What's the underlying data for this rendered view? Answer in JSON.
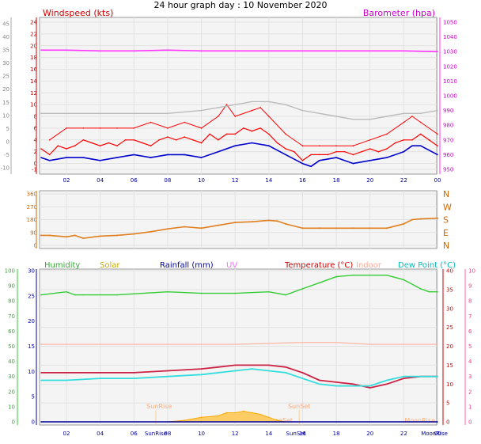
{
  "title": "24 hour graph day : 10 November 2020",
  "colors": {
    "windspeed": "#ff0000",
    "gust": "#ff0000",
    "avg_wind": "#0000cc",
    "barometer": "#ff33ff",
    "wind_dir": "#e08020",
    "humidity": "#33cc33",
    "solar": "#ffaa00",
    "rainfall": "#000099",
    "uv": "#ff66ff",
    "temperature": "#cc2244",
    "indoor": "#ffbbaa",
    "dew_point": "#33dddd"
  },
  "x_ticks": [
    "02",
    "04",
    "06",
    "08",
    "10",
    "12",
    "14",
    "16",
    "18",
    "20",
    "22",
    "00"
  ],
  "panel1": {
    "left_label": "Windspeed (kts)",
    "right_label": "Barometer (hpa)",
    "left_ticks": [
      "-1",
      "0",
      "2",
      "4",
      "6",
      "8",
      "10",
      "12",
      "14",
      "16",
      "18",
      "20",
      "22",
      "24"
    ],
    "left_outer_ticks": [
      "-10",
      "-5",
      "0",
      "5",
      "10",
      "15",
      "20",
      "25",
      "30",
      "35",
      "40",
      "45"
    ],
    "right_ticks": [
      "950",
      "960",
      "970",
      "980",
      "990",
      "1000",
      "1010",
      "1020",
      "1030",
      "1040",
      "1050"
    ]
  },
  "panel2": {
    "left_ticks": [
      "0",
      "90",
      "180",
      "270",
      "360"
    ],
    "right_labels": [
      "N",
      "E",
      "S",
      "W",
      "N"
    ]
  },
  "panel3": {
    "labels": {
      "humidity": "Humidity",
      "solar": "Solar",
      "rainfall": "Rainfall (mm)",
      "uv": "UV",
      "temperature": "Temperature (°C)",
      "indoor": "Indoor",
      "dew_point": "Dew Point (°C)"
    },
    "left_outer_ticks": [
      "0",
      "10",
      "20",
      "30",
      "40",
      "50",
      "60",
      "70",
      "80",
      "90",
      "100"
    ],
    "left_inner_ticks": [
      "0",
      "5",
      "10",
      "15",
      "20",
      "25",
      "30"
    ],
    "right_inner_ticks": [
      "0",
      "5",
      "10",
      "15",
      "20",
      "25",
      "30",
      "35",
      "40"
    ],
    "right_outer_ticks": [
      "0",
      "1",
      "2",
      "3",
      "4",
      "5",
      "6",
      "7",
      "8",
      "9",
      "10"
    ],
    "annotations": {
      "sunrise": "SunRise",
      "sunset": "SunSet",
      "moonrise": "MoonRise",
      "moonset": "MoonSet"
    },
    "bottom_labels": {
      "sunrise": "SunRise",
      "sunset": "SunSet",
      "moonrise": "MoonRise"
    }
  },
  "chart_data": [
    {
      "type": "line",
      "x_unit": "hour",
      "x_range": [
        0.5,
        24
      ],
      "ylabel": "Windspeed (kts)",
      "ylim": [
        -1,
        25
      ],
      "y2label": "Barometer (hpa)",
      "y2lim": [
        950,
        1050
      ],
      "series": [
        {
          "name": "Windspeed (kts)",
          "axis": "left",
          "x": [
            0.5,
            1,
            1.5,
            2,
            2.5,
            3,
            3.5,
            4,
            4.5,
            5,
            5.5,
            6,
            6.5,
            7,
            7.5,
            8,
            8.5,
            9,
            9.5,
            10,
            10.5,
            11,
            11.5,
            12,
            12.5,
            13,
            13.5,
            14,
            14.5,
            15,
            15.5,
            16,
            16.5,
            17,
            17.5,
            18,
            18.5,
            19,
            19.5,
            20,
            20.5,
            21,
            21.5,
            22,
            22.5,
            23,
            23.5,
            24
          ],
          "y": [
            2.5,
            1.5,
            3,
            2.5,
            3,
            4,
            3.5,
            3,
            3.5,
            3,
            4,
            4,
            3.5,
            3,
            4,
            4.5,
            4,
            4.5,
            4,
            3.5,
            5,
            4,
            5,
            5,
            6,
            5.5,
            6,
            5,
            3.5,
            2.5,
            2,
            0.5,
            1.5,
            1.5,
            1.5,
            2,
            2,
            1.5,
            2,
            2.5,
            2,
            2.5,
            3.5,
            4,
            4,
            5,
            4,
            3
          ]
        },
        {
          "name": "Gust",
          "axis": "left",
          "x": [
            1,
            2,
            3,
            4,
            5,
            6,
            7,
            8,
            9,
            10,
            11,
            11.5,
            12,
            13,
            13.5,
            14,
            15,
            16,
            17,
            18,
            19,
            20,
            21,
            22,
            22.5,
            23,
            24
          ],
          "y": [
            4,
            6,
            6,
            6,
            6,
            6,
            7,
            6,
            7,
            6,
            8,
            10,
            8,
            9,
            9.5,
            8,
            5,
            3,
            3,
            3,
            3,
            4,
            5,
            7,
            8,
            7,
            5
          ]
        },
        {
          "name": "Average wind",
          "axis": "left",
          "x": [
            0.5,
            1,
            2,
            3,
            4,
            5,
            6,
            7,
            8,
            9,
            10,
            11,
            12,
            13,
            14,
            15,
            16,
            16.5,
            17,
            18,
            19,
            20,
            21,
            22,
            22.5,
            23,
            24
          ],
          "y": [
            1,
            0.5,
            1,
            1,
            0.5,
            1,
            1.5,
            1,
            1.5,
            1.5,
            1,
            2,
            3,
            3.5,
            3,
            1.5,
            0,
            -0.5,
            0.5,
            1,
            0,
            0.5,
            1,
            2,
            3,
            3,
            1.5
          ]
        },
        {
          "name": "Barometer (hpa)",
          "axis": "right",
          "x": [
            0.5,
            2,
            4,
            6,
            8,
            10,
            12,
            14,
            16,
            18,
            20,
            22,
            24
          ],
          "y": [
            1031,
            1031,
            1030.5,
            1030.5,
            1031,
            1030.5,
            1030.5,
            1030.5,
            1030.5,
            1030.5,
            1030.5,
            1030.5,
            1030
          ]
        },
        {
          "name": "Barometer trace",
          "axis": "left",
          "x": [
            0.5,
            2,
            4,
            6,
            8,
            10,
            11,
            12,
            13,
            14,
            15,
            16,
            17,
            18,
            19,
            20,
            21,
            22,
            23,
            24
          ],
          "y": [
            8.5,
            8.5,
            8.5,
            8.5,
            8.5,
            9,
            9.5,
            10,
            10.5,
            10.5,
            10,
            9,
            8.5,
            8,
            7.5,
            7.5,
            8,
            8.5,
            8.5,
            9
          ]
        }
      ]
    },
    {
      "type": "scatter",
      "x_unit": "hour",
      "x_range": [
        0.5,
        24
      ],
      "ylim": [
        0,
        360
      ],
      "series": [
        {
          "name": "Wind direction",
          "x": [
            0.5,
            1,
            2,
            2.5,
            3,
            4,
            5,
            6,
            7,
            8,
            9,
            10,
            11,
            12,
            13,
            14,
            14.5,
            15,
            16,
            17,
            18,
            19,
            20,
            21,
            22,
            22.5,
            23,
            24
          ],
          "y": [
            70,
            70,
            60,
            70,
            50,
            65,
            70,
            80,
            95,
            115,
            130,
            120,
            140,
            160,
            165,
            175,
            170,
            150,
            120,
            120,
            120,
            120,
            120,
            120,
            150,
            180,
            185,
            190
          ]
        }
      ]
    },
    {
      "type": "line",
      "x_unit": "hour",
      "x_range": [
        0.5,
        24
      ],
      "ylim": [
        0,
        30
      ],
      "y2lim": [
        0,
        40
      ],
      "series": [
        {
          "name": "Humidity",
          "axis": "humidity_0_100",
          "x": [
            0.5,
            2,
            2.5,
            3,
            5,
            8,
            10,
            12,
            14,
            15,
            16,
            17,
            18,
            19,
            20,
            21,
            22,
            23,
            23.5,
            24
          ],
          "y": [
            84,
            86,
            84,
            84,
            84,
            86,
            85,
            85,
            86,
            84,
            88,
            92,
            96,
            97,
            97,
            97,
            94,
            88,
            86,
            86
          ]
        },
        {
          "name": "Solar",
          "axis": "humidity_0_100",
          "x": [
            8,
            9,
            10,
            11,
            11.5,
            12,
            12.5,
            13,
            13.5,
            14,
            14.5,
            15
          ],
          "y": [
            0,
            1,
            3,
            4,
            6,
            6,
            7,
            6,
            5,
            3,
            1,
            0
          ]
        },
        {
          "name": "Rainfall (mm)",
          "axis": "humidity_0_100",
          "x": [
            0.5,
            24
          ],
          "y": [
            0,
            0
          ]
        },
        {
          "name": "Temperature (°C)",
          "axis": "temp_0_40",
          "x": [
            0.5,
            2,
            4,
            6,
            8,
            10,
            11,
            12,
            13,
            14,
            15,
            16,
            17,
            18,
            19,
            20,
            21,
            22,
            23,
            24
          ],
          "y": [
            13,
            13,
            13,
            13,
            13.5,
            14,
            14.5,
            15,
            15,
            15,
            14.5,
            13,
            11,
            10.5,
            10,
            9,
            10,
            11.5,
            12,
            12
          ]
        },
        {
          "name": "Indoor",
          "axis": "temp_0_40",
          "x": [
            0.5,
            4,
            8,
            12,
            16,
            18,
            20,
            24
          ],
          "y": [
            20.5,
            20.5,
            20.5,
            20.5,
            21,
            21,
            20.5,
            20.5
          ]
        },
        {
          "name": "Dew Point (°C)",
          "axis": "temp_0_40",
          "x": [
            0.5,
            2,
            4,
            6,
            8,
            10,
            12,
            13,
            14,
            15,
            16,
            17,
            18,
            19,
            20,
            21,
            22,
            23,
            24
          ],
          "y": [
            11,
            11,
            11.5,
            11.5,
            12,
            12.5,
            13.5,
            14,
            13.5,
            13,
            11.5,
            10,
            9.5,
            9.5,
            9.5,
            11,
            12,
            12,
            12
          ]
        }
      ]
    }
  ]
}
